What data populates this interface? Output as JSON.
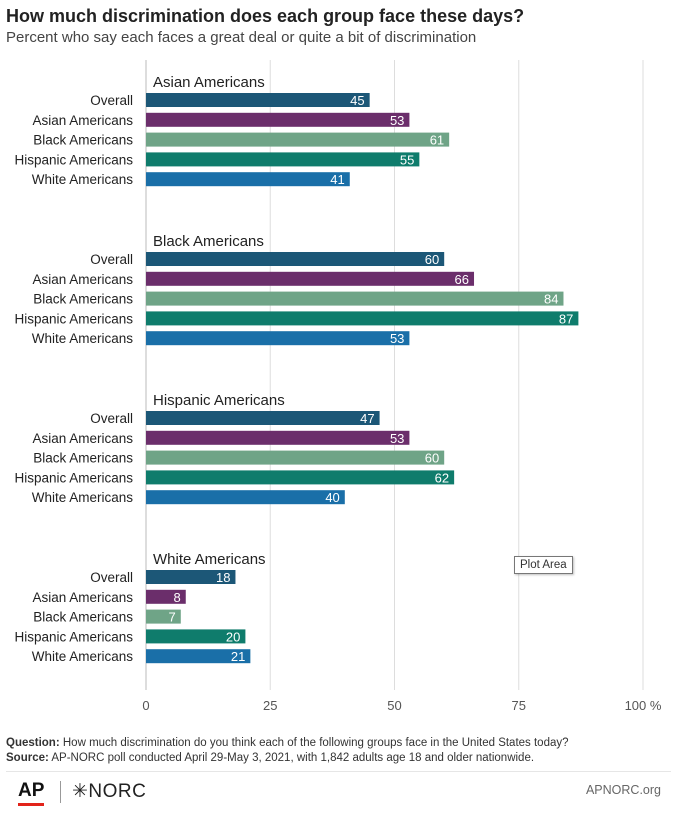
{
  "title": "How much discrimination does each group face these days?",
  "subtitle": "Percent who say each faces a great deal or quite a bit of discrimination",
  "tooltip": "Plot Area",
  "notes": {
    "question_label": "Question:",
    "question_text": " How much discrimination do you think each of the following groups face in the United States today?",
    "source_label": "Source:",
    "source_text": " AP-NORC poll conducted April 29-May 3, 2021, with 1,842 adults age 18 and older nationwide."
  },
  "footer": {
    "logo_ap": "AP",
    "logo_norc": "✳NORC",
    "site": "APNORC.org"
  },
  "colors": {
    "Overall": "#1c5777",
    "Asian Americans": "#6b2e6b",
    "Black Americans": "#6fa487",
    "Hispanic Americans": "#0f7c6c",
    "White Americans": "#1a6fa8",
    "grid": "#dddddd"
  },
  "chart_data": {
    "type": "bar",
    "orientation": "horizontal",
    "xlim": [
      0,
      100
    ],
    "ticks": [
      "0",
      "25",
      "50",
      "75",
      "100 %"
    ],
    "tick_values": [
      0,
      25,
      50,
      75,
      100
    ],
    "grid": true,
    "categories": [
      "Overall",
      "Asian Americans",
      "Black Americans",
      "Hispanic Americans",
      "White Americans"
    ],
    "groups": [
      {
        "name": "Asian Americans",
        "values": [
          45,
          53,
          61,
          55,
          41
        ]
      },
      {
        "name": "Black Americans",
        "values": [
          60,
          66,
          84,
          87,
          53
        ]
      },
      {
        "name": "Hispanic Americans",
        "values": [
          47,
          53,
          60,
          62,
          40
        ]
      },
      {
        "name": "White Americans",
        "values": [
          18,
          8,
          7,
          20,
          21
        ]
      }
    ]
  }
}
